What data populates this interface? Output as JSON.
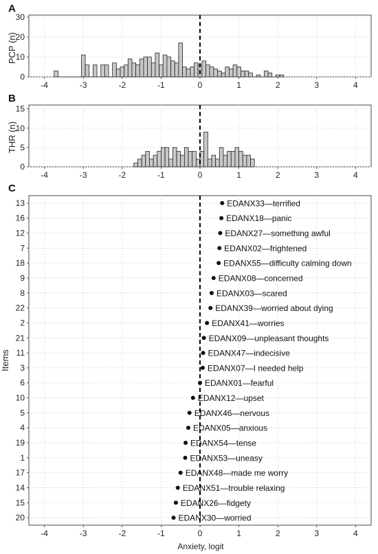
{
  "chart_data": [
    {
      "type": "bar",
      "panel_label": "A",
      "ylabel": "PCP (n)",
      "xlim": [
        -4.4,
        4.4
      ],
      "ylim": [
        0,
        31
      ],
      "x_ticks": [
        -4,
        -3,
        -2,
        -1,
        0,
        1,
        2,
        3,
        4
      ],
      "y_ticks": [
        0,
        10,
        20,
        30
      ],
      "bin_width": 0.1,
      "reference_line_x": 0,
      "bins": [
        {
          "x": -3.7,
          "value": 3
        },
        {
          "x": -3.6,
          "value": 0
        },
        {
          "x": -3.0,
          "value": 11
        },
        {
          "x": -2.9,
          "value": 6
        },
        {
          "x": -2.7,
          "value": 6
        },
        {
          "x": -2.5,
          "value": 6
        },
        {
          "x": -2.4,
          "value": 6
        },
        {
          "x": -2.2,
          "value": 7
        },
        {
          "x": -2.1,
          "value": 4
        },
        {
          "x": -2.0,
          "value": 5
        },
        {
          "x": -1.9,
          "value": 6
        },
        {
          "x": -1.8,
          "value": 9
        },
        {
          "x": -1.7,
          "value": 7
        },
        {
          "x": -1.6,
          "value": 6
        },
        {
          "x": -1.5,
          "value": 9
        },
        {
          "x": -1.4,
          "value": 10
        },
        {
          "x": -1.3,
          "value": 10
        },
        {
          "x": -1.2,
          "value": 7
        },
        {
          "x": -1.1,
          "value": 12
        },
        {
          "x": -1.0,
          "value": 6
        },
        {
          "x": -0.9,
          "value": 11
        },
        {
          "x": -0.8,
          "value": 10
        },
        {
          "x": -0.7,
          "value": 8
        },
        {
          "x": -0.6,
          "value": 7
        },
        {
          "x": -0.5,
          "value": 17
        },
        {
          "x": -0.4,
          "value": 5
        },
        {
          "x": -0.3,
          "value": 4
        },
        {
          "x": -0.2,
          "value": 5
        },
        {
          "x": -0.1,
          "value": 7
        },
        {
          "x": 0.0,
          "value": 6
        },
        {
          "x": 0.1,
          "value": 8
        },
        {
          "x": 0.2,
          "value": 6
        },
        {
          "x": 0.3,
          "value": 5
        },
        {
          "x": 0.4,
          "value": 4
        },
        {
          "x": 0.5,
          "value": 3
        },
        {
          "x": 0.6,
          "value": 2
        },
        {
          "x": 0.7,
          "value": 5
        },
        {
          "x": 0.8,
          "value": 4
        },
        {
          "x": 0.9,
          "value": 6
        },
        {
          "x": 1.0,
          "value": 5
        },
        {
          "x": 1.1,
          "value": 3
        },
        {
          "x": 1.2,
          "value": 3
        },
        {
          "x": 1.3,
          "value": 2
        },
        {
          "x": 1.5,
          "value": 1
        },
        {
          "x": 1.7,
          "value": 3
        },
        {
          "x": 1.8,
          "value": 2
        },
        {
          "x": 2.0,
          "value": 1
        },
        {
          "x": 2.1,
          "value": 1
        }
      ]
    },
    {
      "type": "bar",
      "panel_label": "B",
      "ylabel": "THR (n)",
      "xlim": [
        -4.4,
        4.4
      ],
      "ylim": [
        0,
        16
      ],
      "x_ticks": [
        -4,
        -3,
        -2,
        -1,
        0,
        1,
        2,
        3,
        4
      ],
      "y_ticks": [
        0,
        5,
        10,
        15
      ],
      "bin_width": 0.1,
      "reference_line_x": 0,
      "bins": [
        {
          "x": -1.65,
          "value": 1
        },
        {
          "x": -1.55,
          "value": 2
        },
        {
          "x": -1.45,
          "value": 3
        },
        {
          "x": -1.35,
          "value": 4
        },
        {
          "x": -1.25,
          "value": 2
        },
        {
          "x": -1.15,
          "value": 3
        },
        {
          "x": -1.05,
          "value": 4
        },
        {
          "x": -0.95,
          "value": 5
        },
        {
          "x": -0.85,
          "value": 5
        },
        {
          "x": -0.75,
          "value": 2
        },
        {
          "x": -0.65,
          "value": 5
        },
        {
          "x": -0.55,
          "value": 4
        },
        {
          "x": -0.45,
          "value": 3
        },
        {
          "x": -0.35,
          "value": 5
        },
        {
          "x": -0.25,
          "value": 4
        },
        {
          "x": -0.15,
          "value": 4
        },
        {
          "x": -0.05,
          "value": 2
        },
        {
          "x": 0.05,
          "value": 4
        },
        {
          "x": 0.15,
          "value": 9
        },
        {
          "x": 0.25,
          "value": 2
        },
        {
          "x": 0.35,
          "value": 3
        },
        {
          "x": 0.45,
          "value": 2
        },
        {
          "x": 0.55,
          "value": 5
        },
        {
          "x": 0.65,
          "value": 3
        },
        {
          "x": 0.75,
          "value": 4
        },
        {
          "x": 0.85,
          "value": 4
        },
        {
          "x": 0.95,
          "value": 5
        },
        {
          "x": 1.05,
          "value": 4
        },
        {
          "x": 1.15,
          "value": 3
        },
        {
          "x": 1.25,
          "value": 3
        },
        {
          "x": 1.35,
          "value": 2
        }
      ]
    },
    {
      "type": "scatter",
      "panel_label": "C",
      "xlabel": "Anxiety, logit",
      "ylabel": "Items",
      "xlim": [
        -4.4,
        4.4
      ],
      "x_ticks": [
        -4,
        -3,
        -2,
        -1,
        0,
        1,
        2,
        3,
        4
      ],
      "reference_line_x": 0,
      "points": [
        {
          "item": "13",
          "x": 0.57,
          "label": "EDANX33—terrified"
        },
        {
          "item": "16",
          "x": 0.55,
          "label": "EDANX18—panic"
        },
        {
          "item": "12",
          "x": 0.52,
          "label": "EDANX27—something awful"
        },
        {
          "item": "7",
          "x": 0.5,
          "label": "EDANX02—frightened"
        },
        {
          "item": "18",
          "x": 0.48,
          "label": "EDANX55—difficulty calming down"
        },
        {
          "item": "9",
          "x": 0.35,
          "label": "EDANX08—concerned"
        },
        {
          "item": "8",
          "x": 0.3,
          "label": "EDANX03—scared"
        },
        {
          "item": "22",
          "x": 0.27,
          "label": "EDANX39—worried about dying"
        },
        {
          "item": "2",
          "x": 0.18,
          "label": "EDANX41—worries"
        },
        {
          "item": "21",
          "x": 0.1,
          "label": "EDANX09—unpleasant thoughts"
        },
        {
          "item": "11",
          "x": 0.08,
          "label": "EDANX47—indecisive"
        },
        {
          "item": "3",
          "x": 0.07,
          "label": "EDANX07—I needed help"
        },
        {
          "item": "6",
          "x": 0.0,
          "label": "EDANX01—fearful"
        },
        {
          "item": "10",
          "x": -0.18,
          "label": "EDANX12—upset"
        },
        {
          "item": "5",
          "x": -0.27,
          "label": "EDANX46—nervous"
        },
        {
          "item": "4",
          "x": -0.3,
          "label": "EDANX05—anxious"
        },
        {
          "item": "19",
          "x": -0.37,
          "label": "EDANX54—tense"
        },
        {
          "item": "1",
          "x": -0.38,
          "label": "EDANX53—uneasy"
        },
        {
          "item": "17",
          "x": -0.5,
          "label": "EDANX48—made me worry"
        },
        {
          "item": "14",
          "x": -0.57,
          "label": "EDANX51—trouble relaxing"
        },
        {
          "item": "15",
          "x": -0.62,
          "label": "EDANX26—fidgety"
        },
        {
          "item": "20",
          "x": -0.68,
          "label": "EDANX30—worried"
        }
      ]
    }
  ]
}
